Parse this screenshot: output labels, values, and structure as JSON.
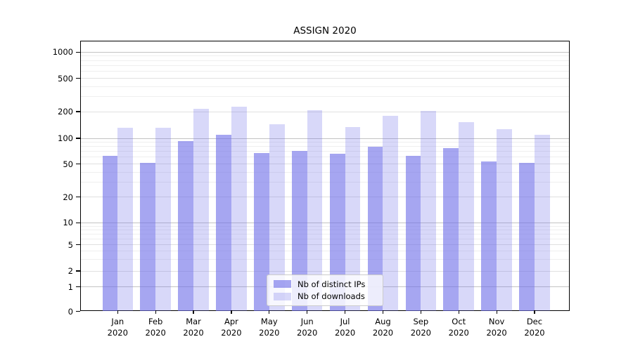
{
  "title": "ASSIGN 2020",
  "chart_data": {
    "type": "bar",
    "title": "ASSIGN 2020",
    "categories": [
      "Jan 2020",
      "Feb 2020",
      "Mar 2020",
      "Apr 2020",
      "May 2020",
      "Jun 2020",
      "Jul 2020",
      "Aug 2020",
      "Sep 2020",
      "Oct 2020",
      "Nov 2020",
      "Dec 2020"
    ],
    "x_tick_months": [
      "Jan",
      "Feb",
      "Mar",
      "Apr",
      "May",
      "Jun",
      "Jul",
      "Aug",
      "Sep",
      "Oct",
      "Nov",
      "Dec"
    ],
    "x_tick_year": "2020",
    "series": [
      {
        "name": "Nb of distinct IPs",
        "color": "#7070e8",
        "alpha": 0.62,
        "rendered_color": "#a6a6f1",
        "values": [
          62,
          51,
          92,
          109,
          67,
          71,
          66,
          80,
          62,
          76,
          53,
          51
        ]
      },
      {
        "name": "Nb of downloads",
        "color": "#7070e8",
        "alpha": 0.27,
        "rendered_color": "#d8d8f9",
        "values": [
          131,
          131,
          217,
          227,
          143,
          207,
          133,
          178,
          204,
          153,
          127,
          109
        ]
      }
    ],
    "ylabel": "",
    "xlabel": "",
    "yscale": "symlog-like (log above 1, compressed linear segment 0-1)",
    "y_ticks": [
      0,
      1,
      2,
      5,
      10,
      20,
      50,
      100,
      200,
      500,
      1000
    ],
    "y_minor_ticks": [
      3,
      4,
      6,
      7,
      8,
      9,
      30,
      40,
      60,
      70,
      80,
      90,
      300,
      400,
      600,
      700,
      800,
      900
    ],
    "ylim": [
      0,
      1300
    ],
    "grid": true,
    "legend": {
      "position": "lower center",
      "entries": [
        "Nb of distinct IPs",
        "Nb of downloads"
      ]
    },
    "colors": {
      "bar_base": "#7070e8",
      "grid_major": "#c3c3c3",
      "grid_mid": "#e0e0e0",
      "grid_minor": "#efefef",
      "spine": "#000000",
      "background": "#ffffff"
    }
  }
}
